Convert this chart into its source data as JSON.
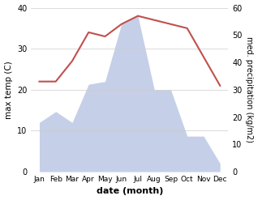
{
  "months": [
    "Jan",
    "Feb",
    "Mar",
    "Apr",
    "May",
    "Jun",
    "Jul",
    "Aug",
    "Sep",
    "Oct",
    "Nov",
    "Dec"
  ],
  "temperature": [
    22,
    22,
    27,
    34,
    33,
    36,
    38,
    37,
    36,
    35,
    28,
    21
  ],
  "precipitation": [
    18,
    22,
    18,
    32,
    33,
    54,
    57,
    30,
    30,
    13,
    13,
    3
  ],
  "temp_color": "#c0504d",
  "precip_color_fill": "#c5cfe8",
  "temp_ylim": [
    0,
    40
  ],
  "precip_ylim": [
    0,
    60
  ],
  "temp_yticks": [
    0,
    10,
    20,
    30,
    40
  ],
  "precip_yticks": [
    0,
    10,
    20,
    30,
    40,
    50,
    60
  ],
  "xlabel": "date (month)",
  "ylabel_left": "max temp (C)",
  "ylabel_right": "med. precipitation (kg/m2)",
  "background_color": "#ffffff"
}
